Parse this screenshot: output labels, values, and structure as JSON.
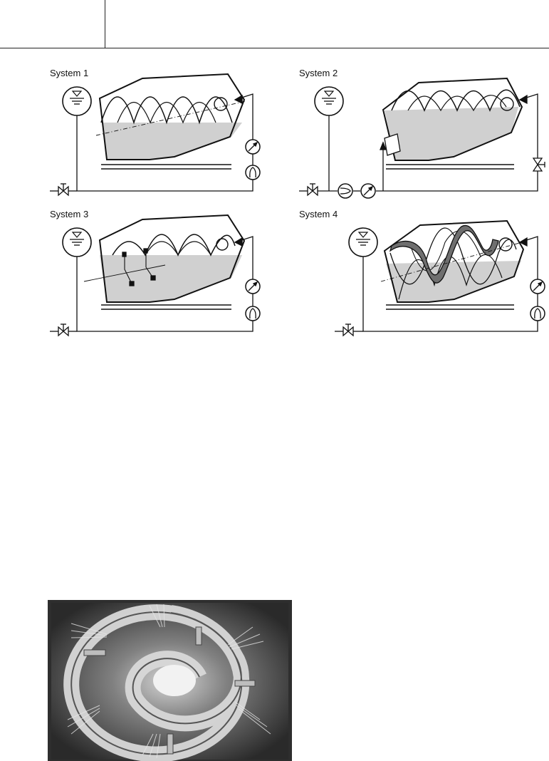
{
  "systems": [
    {
      "label": "System 1"
    },
    {
      "label": "System 2"
    },
    {
      "label": "System 3"
    },
    {
      "label": "System 4"
    }
  ],
  "colors": {
    "line": "#111111",
    "liquid": "#d0d0d0",
    "band": "#6f6f6f"
  },
  "icons": [
    "tank-level-icon",
    "valve-icon",
    "pump-icon",
    "gauge-icon"
  ]
}
